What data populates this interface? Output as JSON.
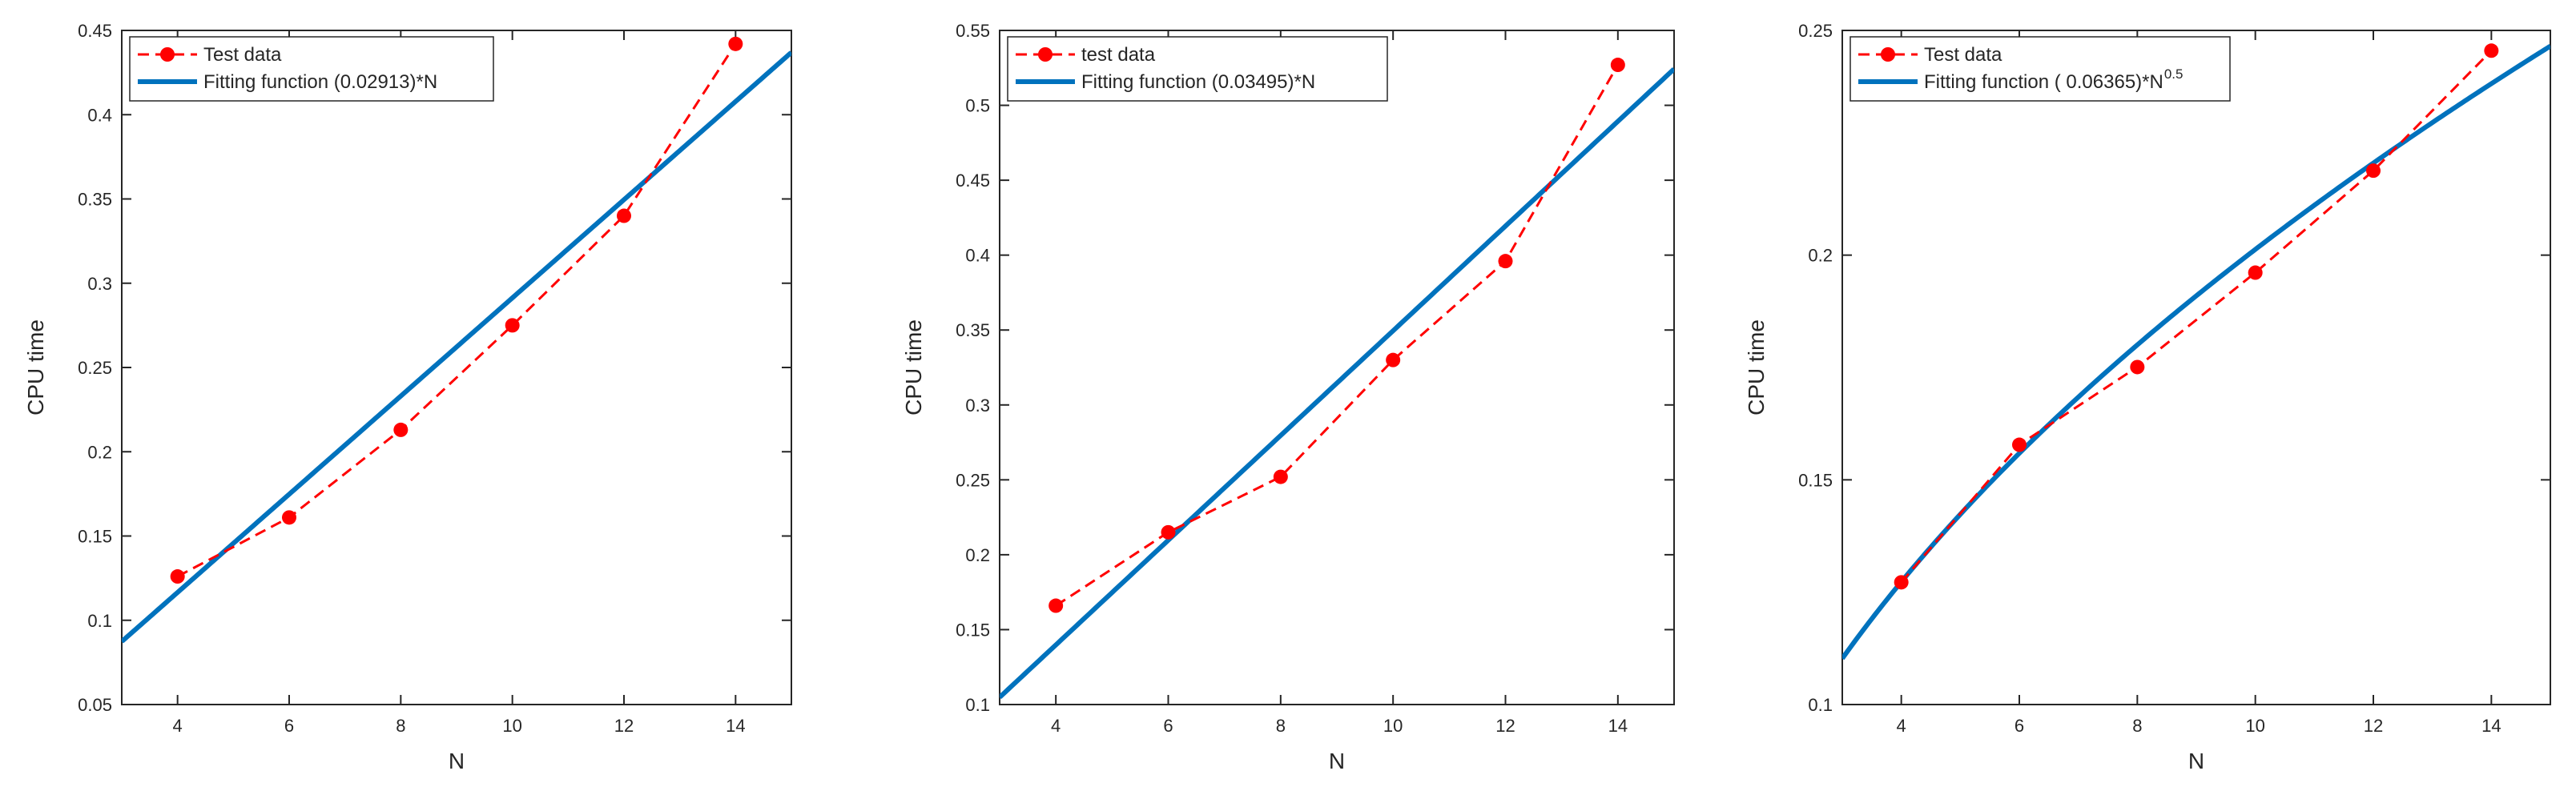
{
  "chart_data": [
    {
      "type": "line",
      "xlabel": "N",
      "ylabel": "CPU time",
      "xlim": [
        3,
        15
      ],
      "ylim": [
        0.05,
        0.45
      ],
      "xticks": [
        4,
        6,
        8,
        10,
        12,
        14
      ],
      "xtick_labels": [
        "4",
        "6",
        "8",
        "10",
        "12",
        "14"
      ],
      "yticks": [
        0.05,
        0.1,
        0.15,
        0.2,
        0.25,
        0.3,
        0.35,
        0.4,
        0.45
      ],
      "ytick_labels": [
        "0.05",
        "0.1",
        "0.15",
        "0.2",
        "0.25",
        "0.3",
        "0.35",
        "0.4",
        "0.45"
      ],
      "grid": false,
      "legend_position": "top-left",
      "series": [
        {
          "name": "Test data",
          "style": "dashed-markers",
          "color": "#ff0000",
          "x": [
            4,
            6,
            8,
            10,
            12,
            14
          ],
          "y": [
            0.126,
            0.161,
            0.213,
            0.275,
            0.34,
            0.442
          ]
        },
        {
          "name": "Fitting function (0.02913)*N",
          "style": "solid",
          "color": "#0072bd",
          "fit": {
            "coef": 0.02913,
            "power": 1
          }
        }
      ]
    },
    {
      "type": "line",
      "xlabel": "N",
      "ylabel": "CPU time",
      "xlim": [
        3,
        15
      ],
      "ylim": [
        0.1,
        0.55
      ],
      "xticks": [
        4,
        6,
        8,
        10,
        12,
        14
      ],
      "xtick_labels": [
        "4",
        "6",
        "8",
        "10",
        "12",
        "14"
      ],
      "yticks": [
        0.1,
        0.15,
        0.2,
        0.25,
        0.3,
        0.35,
        0.4,
        0.45,
        0.5,
        0.55
      ],
      "ytick_labels": [
        "0.1",
        "0.15",
        "0.2",
        "0.25",
        "0.3",
        "0.35",
        "0.4",
        "0.45",
        "0.5",
        "0.55"
      ],
      "grid": false,
      "legend_position": "top-left",
      "series": [
        {
          "name": "test data",
          "style": "dashed-markers",
          "color": "#ff0000",
          "x": [
            4,
            6,
            8,
            10,
            12,
            14
          ],
          "y": [
            0.166,
            0.215,
            0.252,
            0.33,
            0.396,
            0.527
          ]
        },
        {
          "name": "Fitting function (0.03495)*N",
          "style": "solid",
          "color": "#0072bd",
          "fit": {
            "coef": 0.03495,
            "power": 1
          }
        }
      ]
    },
    {
      "type": "line",
      "xlabel": "N",
      "ylabel": "CPU time",
      "xlim": [
        3,
        15
      ],
      "ylim": [
        0.1,
        0.25
      ],
      "xticks": [
        4,
        6,
        8,
        10,
        12,
        14
      ],
      "xtick_labels": [
        "4",
        "6",
        "8",
        "10",
        "12",
        "14"
      ],
      "yticks": [
        0.1,
        0.15,
        0.2,
        0.25
      ],
      "ytick_labels": [
        "0.1",
        "0.15",
        "0.2",
        "0.25"
      ],
      "grid": false,
      "legend_position": "top-left",
      "series": [
        {
          "name": "Test data",
          "style": "dashed-markers",
          "color": "#ff0000",
          "x": [
            4,
            6,
            8,
            10,
            12,
            14
          ],
          "y": [
            0.1272,
            0.1578,
            0.1751,
            0.1961,
            0.2188,
            0.2455
          ]
        },
        {
          "name": "Fitting function ( 0.06365)*N",
          "name_superscript": "0.5",
          "style": "solid",
          "color": "#0072bd",
          "fit": {
            "coef": 0.06365,
            "power": 0.5
          }
        }
      ]
    }
  ]
}
